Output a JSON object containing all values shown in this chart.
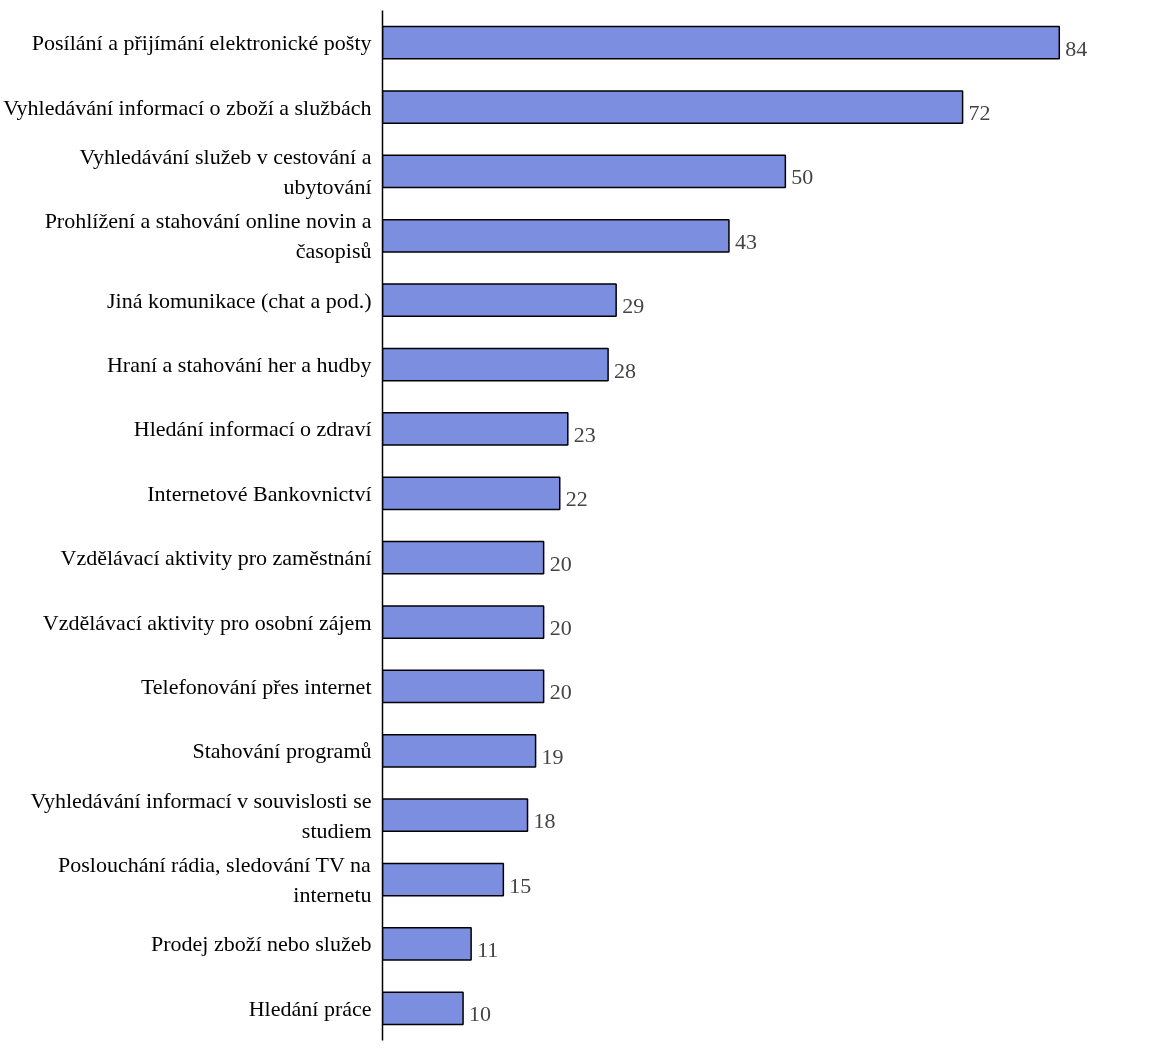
{
  "chart_data": {
    "type": "bar",
    "orientation": "horizontal",
    "data_labels": true,
    "categories": [
      "Posílání a přijímání elektronické pošty",
      "Vyhledávání informací o zboží a službách",
      "Vyhledávání služeb v cestování a ubytování",
      "Prohlížení a stahování online novin a časopisů",
      "Jiná komunikace (chat a pod.)",
      "Hraní a stahování her a hudby",
      "Hledání informací o zdraví",
      "Internetové Bankovnictví",
      "Vzdělávací aktivity pro zaměstnání",
      "Vzdělávací aktivity pro osobní zájem",
      "Telefonování přes internet",
      "Stahování programů",
      "Vyhledávání informací v souvislosti se studiem",
      "Poslouchání rádia, sledování TV na internetu",
      "Prodej zboží nebo služeb",
      "Hledání práce"
    ],
    "values": [
      84,
      72,
      50,
      43,
      29,
      28,
      23,
      22,
      20,
      20,
      20,
      19,
      18,
      15,
      11,
      10
    ],
    "color": "#7b8ee0"
  }
}
